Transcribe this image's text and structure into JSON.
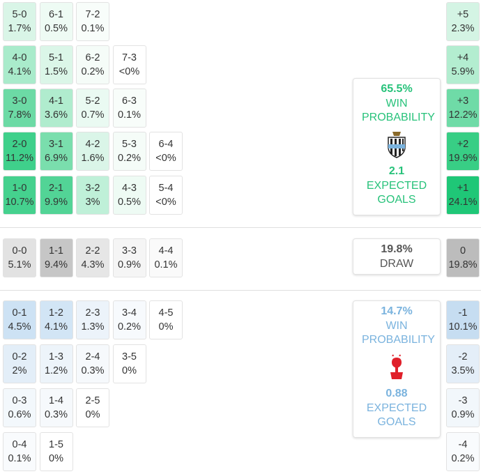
{
  "home_grid": [
    [
      {
        "score": "5-0",
        "prob": "1.7%",
        "color": "#d9f5e7"
      },
      {
        "score": "6-1",
        "prob": "0.5%",
        "color": "#eefbf4"
      },
      {
        "score": "7-2",
        "prob": "0.1%",
        "color": "#f8fdfa"
      }
    ],
    [
      {
        "score": "4-0",
        "prob": "4.1%",
        "color": "#a9ebcb"
      },
      {
        "score": "5-1",
        "prob": "1.5%",
        "color": "#dbf6e8"
      },
      {
        "score": "6-2",
        "prob": "0.2%",
        "color": "#f5fcf8"
      },
      {
        "score": "7-3",
        "prob": "<0%",
        "color": "#ffffff"
      }
    ],
    [
      {
        "score": "3-0",
        "prob": "7.8%",
        "color": "#6cdaa5"
      },
      {
        "score": "4-1",
        "prob": "3.6%",
        "color": "#b0ecce"
      },
      {
        "score": "5-2",
        "prob": "0.7%",
        "color": "#eafaf2"
      },
      {
        "score": "6-3",
        "prob": "0.1%",
        "color": "#f8fdfa"
      }
    ],
    [
      {
        "score": "2-0",
        "prob": "11.2%",
        "color": "#3fd08b"
      },
      {
        "score": "3-1",
        "prob": "6.9%",
        "color": "#7adead"
      },
      {
        "score": "4-2",
        "prob": "1.6%",
        "color": "#daf5e8"
      },
      {
        "score": "5-3",
        "prob": "0.2%",
        "color": "#f5fcf8"
      },
      {
        "score": "6-4",
        "prob": "<0%",
        "color": "#ffffff"
      }
    ],
    [
      {
        "score": "1-0",
        "prob": "10.7%",
        "color": "#45d18e"
      },
      {
        "score": "2-1",
        "prob": "9.9%",
        "color": "#52d496"
      },
      {
        "score": "3-2",
        "prob": "3%",
        "color": "#bff0d8"
      },
      {
        "score": "4-3",
        "prob": "0.5%",
        "color": "#eefbf4"
      },
      {
        "score": "5-4",
        "prob": "<0%",
        "color": "#ffffff"
      }
    ]
  ],
  "draw_row": [
    {
      "score": "0-0",
      "prob": "5.1%",
      "color": "#e2e2e2"
    },
    {
      "score": "1-1",
      "prob": "9.4%",
      "color": "#c6c6c6"
    },
    {
      "score": "2-2",
      "prob": "4.3%",
      "color": "#e6e6e6"
    },
    {
      "score": "3-3",
      "prob": "0.9%",
      "color": "#f5f5f5"
    },
    {
      "score": "4-4",
      "prob": "0.1%",
      "color": "#fafafa"
    }
  ],
  "away_grid": [
    [
      {
        "score": "0-1",
        "prob": "4.5%",
        "color": "#cde2f4"
      },
      {
        "score": "1-2",
        "prob": "4.1%",
        "color": "#d2e5f5"
      },
      {
        "score": "2-3",
        "prob": "1.3%",
        "color": "#ecf3fa"
      },
      {
        "score": "3-4",
        "prob": "0.2%",
        "color": "#f7fafd"
      },
      {
        "score": "4-5",
        "prob": "0%",
        "color": "#ffffff"
      }
    ],
    [
      {
        "score": "0-2",
        "prob": "2%",
        "color": "#e3eef8"
      },
      {
        "score": "1-3",
        "prob": "1.2%",
        "color": "#edf4fa"
      },
      {
        "score": "2-4",
        "prob": "0.3%",
        "color": "#f6f9fc"
      },
      {
        "score": "3-5",
        "prob": "0%",
        "color": "#ffffff"
      }
    ],
    [
      {
        "score": "0-3",
        "prob": "0.6%",
        "color": "#f3f8fc"
      },
      {
        "score": "1-4",
        "prob": "0.3%",
        "color": "#f6f9fc"
      },
      {
        "score": "2-5",
        "prob": "0%",
        "color": "#ffffff"
      }
    ],
    [
      {
        "score": "0-4",
        "prob": "0.1%",
        "color": "#f9fbfd"
      },
      {
        "score": "1-5",
        "prob": "0%",
        "color": "#ffffff"
      }
    ]
  ],
  "margins": {
    "home": [
      {
        "score": "+5",
        "prob": "2.3%",
        "color": "#d4f4e4"
      },
      {
        "score": "+4",
        "prob": "5.9%",
        "color": "#b3edd0"
      },
      {
        "score": "+3",
        "prob": "12.2%",
        "color": "#6fdba7"
      },
      {
        "score": "+2",
        "prob": "19.9%",
        "color": "#38ce85"
      },
      {
        "score": "+1",
        "prob": "24.1%",
        "color": "#1fc777"
      }
    ],
    "draw": [
      {
        "score": "0",
        "prob": "19.8%",
        "color": "#bcbcbc"
      }
    ],
    "away": [
      {
        "score": "-1",
        "prob": "10.1%",
        "color": "#c6ddf1"
      },
      {
        "score": "-2",
        "prob": "3.5%",
        "color": "#e4eef8"
      },
      {
        "score": "-3",
        "prob": "0.9%",
        "color": "#f2f7fb"
      },
      {
        "score": "-4",
        "prob": "0.2%",
        "color": "#f9fbfd"
      }
    ]
  },
  "summary": {
    "home": {
      "probability": "65.5%",
      "win_label": "WIN PROBABILITY",
      "xg": "2.1",
      "xg_label": "EXPECTED GOALS",
      "color": "#27c27a"
    },
    "draw": {
      "probability": "19.8%",
      "label": "DRAW",
      "color": "#555555"
    },
    "away": {
      "probability": "14.7%",
      "win_label": "WIN PROBABILITY",
      "xg": "0.88",
      "xg_label": "EXPECTED GOALS",
      "color": "#7ab3de"
    }
  }
}
